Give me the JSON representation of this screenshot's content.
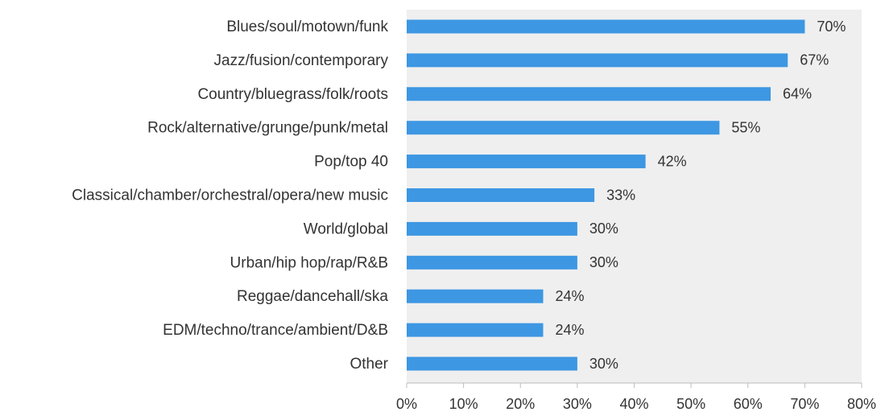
{
  "chart_data": {
    "type": "bar",
    "orientation": "horizontal",
    "categories": [
      "Blues/soul/motown/funk",
      "Jazz/fusion/contemporary",
      "Country/bluegrass/folk/roots",
      "Rock/alternative/grunge/punk/metal",
      "Pop/top 40",
      "Classical/chamber/orchestral/opera/new music",
      "World/global",
      "Urban/hip hop/rap/R&B",
      "Reggae/dancehall/ska",
      "EDM/techno/trance/ambient/D&B",
      "Other"
    ],
    "values": [
      70,
      67,
      64,
      55,
      42,
      33,
      30,
      30,
      24,
      24,
      30
    ],
    "value_labels": [
      "70%",
      "67%",
      "64%",
      "55%",
      "42%",
      "33%",
      "30%",
      "30%",
      "24%",
      "24%",
      "30%"
    ],
    "xlim": [
      0,
      80
    ],
    "x_ticks": [
      0,
      10,
      20,
      30,
      40,
      50,
      60,
      70,
      80
    ],
    "x_tick_labels": [
      "0%",
      "10%",
      "20%",
      "30%",
      "40%",
      "50%",
      "60%",
      "70%",
      "80%"
    ],
    "title": "",
    "xlabel": "",
    "ylabel": "",
    "grid": false,
    "legend": "none",
    "colors": {
      "bar": "#3d97e3",
      "plot_background": "#efefef",
      "axis": "#bdbdbd",
      "text": "#333333"
    }
  }
}
